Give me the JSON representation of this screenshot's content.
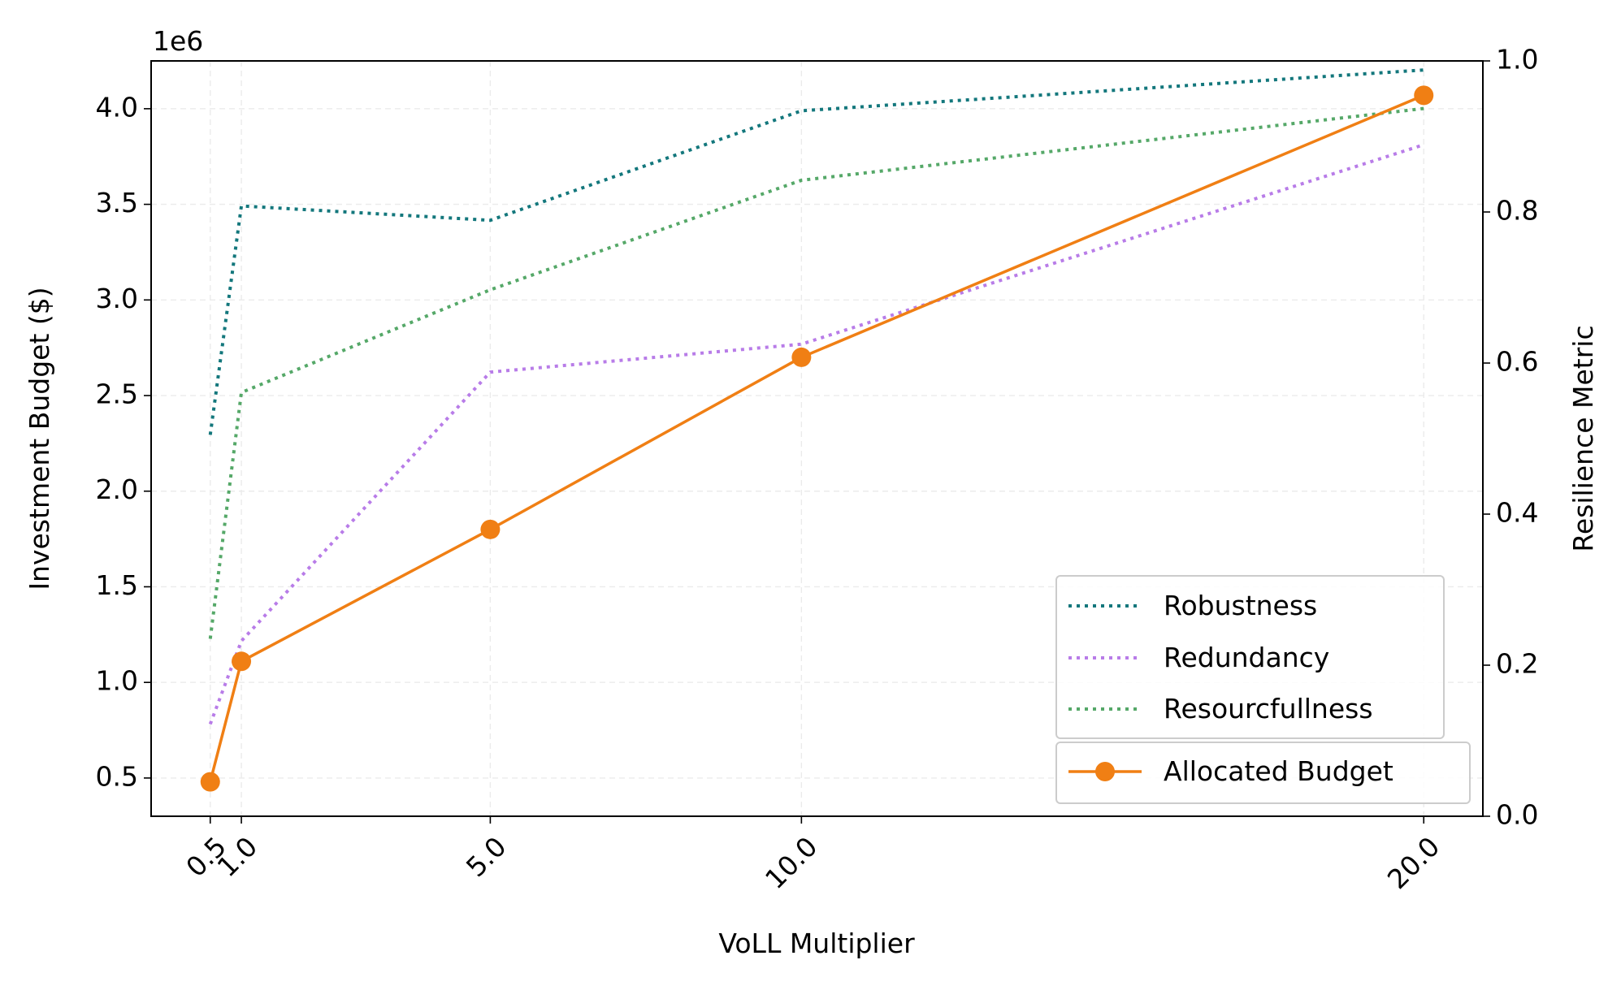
{
  "chart_data": {
    "type": "line",
    "xlabel": "VoLL Multiplier",
    "x": [
      0.5,
      1.0,
      5.0,
      10.0,
      20.0
    ],
    "x_tick_labels": [
      "0.5",
      "1.0",
      "5.0",
      "10.0",
      "20.0"
    ],
    "xlim": [
      -0.45,
      20.95
    ],
    "grid": true,
    "left_axis": {
      "label": "Investment Budget ($)",
      "offset_text": "1e6",
      "ylim": [
        0.3,
        4.25
      ],
      "ticks": [
        0.5,
        1.0,
        1.5,
        2.0,
        2.5,
        3.0,
        3.5,
        4.0
      ],
      "tick_labels": [
        "0.5",
        "1.0",
        "1.5",
        "2.0",
        "2.5",
        "3.0",
        "3.5",
        "4.0"
      ]
    },
    "right_axis": {
      "label": "Resilience Metric",
      "ylim": [
        0.0,
        1.0
      ],
      "ticks": [
        0.0,
        0.2,
        0.4,
        0.6,
        0.8,
        1.0
      ],
      "tick_labels": [
        "0.0",
        "0.2",
        "0.4",
        "0.6",
        "0.8",
        "1.0"
      ]
    },
    "series": [
      {
        "name": "Robustness",
        "axis": "right",
        "style": "dotted",
        "color": "#13777c",
        "values": [
          0.505,
          0.808,
          0.789,
          0.934,
          0.988
        ]
      },
      {
        "name": "Redundancy",
        "axis": "right",
        "style": "dotted",
        "color": "#b87ce8",
        "values": [
          0.122,
          0.232,
          0.588,
          0.625,
          0.889
        ]
      },
      {
        "name": "Resourcfullness",
        "axis": "right",
        "style": "dotted",
        "color": "#55a868",
        "values": [
          0.235,
          0.561,
          0.697,
          0.842,
          0.937
        ]
      },
      {
        "name": "Allocated Budget",
        "axis": "left",
        "style": "solid-marker",
        "color": "#f07f14",
        "values": [
          0.48,
          1.11,
          1.8,
          2.7,
          4.07
        ]
      }
    ],
    "legends": [
      {
        "placement": "lower-right",
        "entries": [
          "Robustness",
          "Redundancy",
          "Resourcfullness"
        ]
      },
      {
        "placement": "lower-right",
        "entries": [
          "Allocated Budget"
        ]
      }
    ]
  }
}
